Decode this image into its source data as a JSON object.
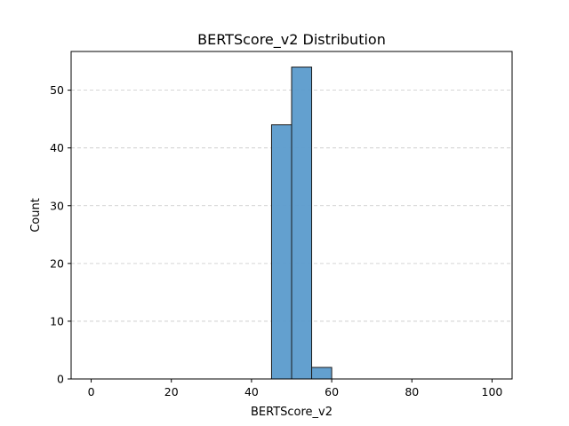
{
  "chart_data": {
    "type": "bar",
    "subtype": "histogram",
    "title": "BERTScore_v2 Distribution",
    "xlabel": "BERTScore_v2",
    "ylabel": "Count",
    "xlim": [
      -5,
      105
    ],
    "ylim": [
      0,
      56.7
    ],
    "x_ticks": [
      0,
      20,
      40,
      60,
      80,
      100
    ],
    "y_ticks": [
      0,
      10,
      20,
      30,
      40,
      50
    ],
    "bins": [
      {
        "start": 45,
        "end": 50,
        "count": 44
      },
      {
        "start": 50,
        "end": 55,
        "count": 54
      },
      {
        "start": 55,
        "end": 60,
        "count": 2
      }
    ],
    "grid": {
      "axis": "y",
      "style": "dashed"
    },
    "colors": {
      "bar_fill": "#5b9bcc",
      "bar_edge": "#1a1a1a",
      "grid": "#c8c8c8"
    }
  }
}
